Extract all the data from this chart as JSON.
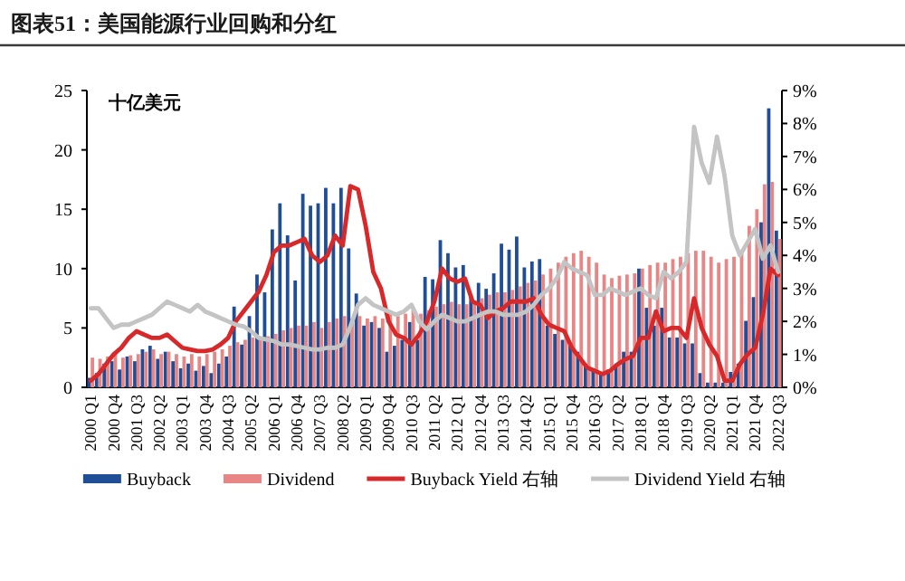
{
  "chart_data": {
    "type": "bar",
    "title": "图表51：美国能源行业回购和分红",
    "ylabel": "十亿美元",
    "categories": [
      "2000 Q1",
      null,
      null,
      "2000 Q4",
      null,
      null,
      "2001 Q3",
      null,
      null,
      "2002 Q2",
      null,
      null,
      "2003 Q1",
      null,
      null,
      "2003 Q4",
      null,
      null,
      "2004 Q3",
      null,
      null,
      "2005 Q2",
      null,
      null,
      "2006 Q1",
      null,
      null,
      "2006 Q4",
      null,
      null,
      "2007 Q3",
      null,
      null,
      "2008 Q2",
      null,
      null,
      "2009 Q1",
      null,
      null,
      "2009 Q4",
      null,
      null,
      "2010 Q3",
      null,
      null,
      "2011 Q2",
      null,
      null,
      "2012 Q1",
      null,
      null,
      "2012 Q4",
      null,
      null,
      "2013 Q3",
      null,
      null,
      "2014 Q2",
      null,
      null,
      "2015 Q1",
      null,
      null,
      "2015 Q4",
      null,
      null,
      "2016 Q3",
      null,
      null,
      "2017 Q2",
      null,
      null,
      "2018 Q1",
      null,
      null,
      "2018 Q4",
      null,
      null,
      "2019 Q3",
      null,
      null,
      "2020 Q2",
      null,
      null,
      "2021 Q1",
      null,
      null,
      "2021 Q4",
      null,
      null,
      "2022 Q3"
    ],
    "series": [
      {
        "name": "Buyback",
        "color": "#1f4e96",
        "values": [
          0.8,
          1.2,
          2.0,
          2.2,
          1.5,
          2.6,
          2.2,
          3.2,
          3.5,
          2.4,
          3.0,
          2.2,
          1.6,
          2.0,
          1.4,
          1.8,
          1.2,
          2.0,
          2.6,
          6.8,
          3.6,
          6.0,
          9.5,
          8.0,
          13.3,
          15.5,
          12.8,
          9.0,
          16.3,
          15.3,
          15.5,
          16.8,
          15.5,
          16.8,
          11.7,
          7.9,
          5.2,
          5.5,
          5.0,
          3.0,
          3.5,
          4.0,
          5.5,
          4.0,
          9.3,
          9.1,
          12.4,
          11.3,
          10.1,
          10.3,
          7.8,
          8.8,
          8.3,
          9.6,
          12.1,
          11.6,
          12.7,
          10.1,
          10.6,
          10.8,
          5.2,
          4.5,
          4.0,
          3.5,
          3.0,
          2.0,
          1.5,
          1.2,
          1.5,
          2.0,
          3.0,
          3.0,
          10.0,
          6.7,
          5.2,
          6.7,
          4.2,
          4.2,
          3.7,
          3.7,
          1.2,
          0.4,
          0.4,
          0.4,
          1.3,
          2.0,
          5.6,
          7.6,
          13.9,
          23.5,
          13.2
        ]
      },
      {
        "name": "Dividend",
        "color": "#e88585",
        "values": [
          2.5,
          2.4,
          2.6,
          2.8,
          2.5,
          2.7,
          2.8,
          3.0,
          3.2,
          2.8,
          3.0,
          2.8,
          2.6,
          2.8,
          2.6,
          2.8,
          3.0,
          3.2,
          3.5,
          3.8,
          4.0,
          4.2,
          4.0,
          4.3,
          4.5,
          4.8,
          5.0,
          5.2,
          5.2,
          5.5,
          5.0,
          5.5,
          5.8,
          6.0,
          5.8,
          6.0,
          5.8,
          6.0,
          5.8,
          6.2,
          6.0,
          6.2,
          6.5,
          6.2,
          6.5,
          6.8,
          7.0,
          7.2,
          7.0,
          7.0,
          7.2,
          7.5,
          7.8,
          8.0,
          8.0,
          8.2,
          8.5,
          8.8,
          9.0,
          9.5,
          10.0,
          10.5,
          11.0,
          11.3,
          11.5,
          11.0,
          10.5,
          9.5,
          9.2,
          9.4,
          9.5,
          9.6,
          10.0,
          10.3,
          10.5,
          10.5,
          10.8,
          11.0,
          11.3,
          11.5,
          11.5,
          11.0,
          10.5,
          10.8,
          11.0,
          11.3,
          13.6,
          15.0,
          17.1,
          17.3,
          12.5
        ]
      },
      {
        "name": "Buyback Yield 右轴",
        "type": "line",
        "axis": "y2",
        "color": "#d7282a",
        "values": [
          0.2,
          0.4,
          0.7,
          1.0,
          1.2,
          1.5,
          1.7,
          1.6,
          1.5,
          1.5,
          1.6,
          1.4,
          1.2,
          1.15,
          1.1,
          1.1,
          1.15,
          1.3,
          1.5,
          2.0,
          2.3,
          2.6,
          2.9,
          3.4,
          4.1,
          4.3,
          4.3,
          4.4,
          4.5,
          4.0,
          3.8,
          4.0,
          4.6,
          4.3,
          6.1,
          6.0,
          4.9,
          3.5,
          3.0,
          2.0,
          1.6,
          1.5,
          1.3,
          1.6,
          2.0,
          2.6,
          3.6,
          3.3,
          3.2,
          3.3,
          2.6,
          2.5,
          2.1,
          2.3,
          2.4,
          2.6,
          2.6,
          2.6,
          2.7,
          2.2,
          1.9,
          1.8,
          1.7,
          1.2,
          0.9,
          0.6,
          0.5,
          0.4,
          0.5,
          0.7,
          0.85,
          0.95,
          1.5,
          1.5,
          2.3,
          1.7,
          1.8,
          1.8,
          1.5,
          2.7,
          1.8,
          1.3,
          0.95,
          0.2,
          0.2,
          0.7,
          1.0,
          1.2,
          2.2,
          3.6,
          3.4
        ]
      },
      {
        "name": "Dividend Yield 右轴",
        "type": "line",
        "axis": "y2",
        "color": "#c4c4c4",
        "values": [
          2.4,
          2.4,
          2.1,
          1.8,
          1.9,
          1.9,
          2.0,
          2.1,
          2.2,
          2.4,
          2.6,
          2.5,
          2.4,
          2.3,
          2.5,
          2.3,
          2.2,
          2.1,
          2.0,
          1.9,
          1.85,
          1.7,
          1.5,
          1.45,
          1.4,
          1.3,
          1.3,
          1.25,
          1.2,
          1.15,
          1.15,
          1.2,
          1.2,
          1.3,
          1.85,
          2.5,
          2.7,
          2.5,
          2.4,
          2.3,
          2.2,
          2.3,
          2.5,
          2.0,
          1.75,
          2.0,
          2.2,
          2.1,
          2.0,
          2.0,
          2.1,
          2.2,
          2.3,
          2.3,
          2.2,
          2.2,
          2.2,
          2.3,
          2.5,
          2.8,
          3.0,
          3.3,
          3.8,
          3.6,
          3.5,
          3.4,
          2.8,
          2.8,
          3.0,
          2.9,
          2.8,
          2.9,
          3.0,
          2.8,
          2.7,
          3.5,
          3.3,
          3.5,
          3.8,
          7.9,
          6.8,
          6.2,
          7.6,
          6.4,
          4.6,
          4.0,
          4.4,
          4.8,
          3.9,
          4.3,
          3.5
        ]
      }
    ],
    "ylim": [
      0,
      25
    ],
    "yticks": [
      0,
      5,
      10,
      15,
      20,
      25
    ],
    "y2lim": [
      0,
      9
    ],
    "y2ticks": [
      {
        "value": 0,
        "label": "0%"
      },
      {
        "value": 1,
        "label": "1%"
      },
      {
        "value": 2,
        "label": "2%"
      },
      {
        "value": 3,
        "label": "3%"
      },
      {
        "value": 4,
        "label": "4%"
      },
      {
        "value": 5,
        "label": "5%"
      },
      {
        "value": 6,
        "label": "6%"
      },
      {
        "value": 7,
        "label": "7%"
      },
      {
        "value": 8,
        "label": "8%"
      },
      {
        "value": 9,
        "label": "9%"
      }
    ],
    "legend": "bottom"
  }
}
